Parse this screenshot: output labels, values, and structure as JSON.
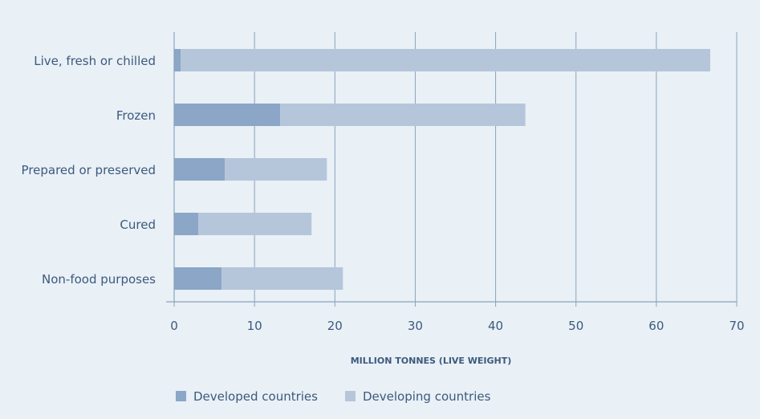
{
  "chart_data": {
    "type": "bar",
    "orientation": "horizontal",
    "stacked": true,
    "categories": [
      "Live, fresh or chilled",
      "Frozen",
      "Prepared or preserved",
      "Cured",
      "Non-food purposes"
    ],
    "series": [
      {
        "name": "Developed countries",
        "values": [
          0.8,
          13.2,
          6.3,
          3.0,
          5.9
        ]
      },
      {
        "name": "Developing countries",
        "values": [
          65.9,
          30.5,
          12.7,
          14.1,
          15.1
        ]
      }
    ],
    "xlabel": "MILLION TONNES (LIVE WEIGHT)",
    "xlim": [
      0,
      70
    ],
    "xticks": [
      "0",
      "10",
      "20",
      "30",
      "40",
      "50",
      "60",
      "70"
    ],
    "grid": "vertical",
    "legend_position": "bottom-left",
    "colors": {
      "background": "#e9f0f6",
      "developed": "#8ba6c6",
      "developing": "#b5c6da",
      "grid": "#8aa3bd",
      "text": "#3c5a7d"
    }
  }
}
